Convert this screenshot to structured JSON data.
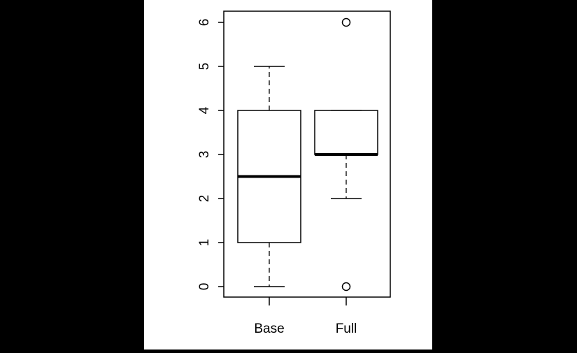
{
  "chart_data": {
    "type": "boxplot",
    "title": "",
    "xlabel": "",
    "ylabel": "",
    "ylim": [
      0,
      6
    ],
    "yticks": [
      0,
      1,
      2,
      3,
      4,
      5,
      6
    ],
    "grid": false,
    "categories": [
      "Base",
      "Full"
    ],
    "boxes": [
      {
        "label": "Base",
        "whisker_low": 0,
        "q1": 1,
        "median": 2.5,
        "q3": 4,
        "whisker_high": 5,
        "outliers": []
      },
      {
        "label": "Full",
        "whisker_low": 2,
        "q1": 3,
        "median": 3,
        "q3": 4,
        "whisker_high": 4,
        "outliers": [
          0,
          6
        ]
      }
    ]
  }
}
